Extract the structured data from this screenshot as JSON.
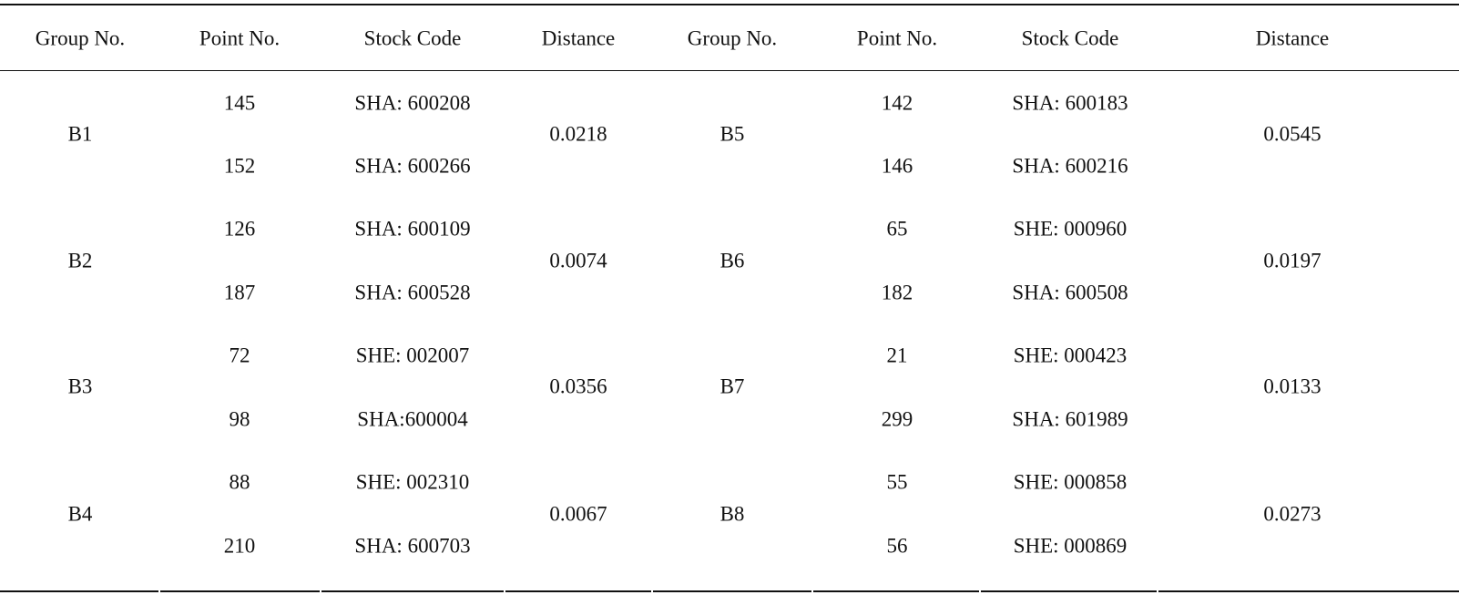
{
  "table": {
    "headers": [
      "Group No.",
      "Point No.",
      "Stock Code",
      "Distance",
      "Group No.",
      "Point No.",
      "Stock Code",
      "Distance"
    ],
    "left_groups": [
      {
        "group": "B1",
        "points": [
          "145",
          "152"
        ],
        "codes": [
          "SHA: 600208",
          "SHA: 600266"
        ],
        "distance": "0.0218"
      },
      {
        "group": "B2",
        "points": [
          "126",
          "187"
        ],
        "codes": [
          "SHA: 600109",
          "SHA: 600528"
        ],
        "distance": "0.0074"
      },
      {
        "group": "B3",
        "points": [
          "72",
          "98"
        ],
        "codes": [
          "SHE: 002007",
          "SHA:600004"
        ],
        "distance": "0.0356"
      },
      {
        "group": "B4",
        "points": [
          "88",
          "210"
        ],
        "codes": [
          "SHE: 002310",
          "SHA: 600703"
        ],
        "distance": "0.0067"
      }
    ],
    "right_groups": [
      {
        "group": "B5",
        "points": [
          "142",
          "146"
        ],
        "codes": [
          "SHA: 600183",
          "SHA: 600216"
        ],
        "distance": "0.0545"
      },
      {
        "group": "B6",
        "points": [
          "65",
          "182"
        ],
        "codes": [
          "SHE: 000960",
          "SHA: 600508"
        ],
        "distance": "0.0197"
      },
      {
        "group": "B7",
        "points": [
          "21",
          "299"
        ],
        "codes": [
          "SHE: 000423",
          "SHA: 601989"
        ],
        "distance": "0.0133"
      },
      {
        "group": "B8",
        "points": [
          "55",
          "56"
        ],
        "codes": [
          "SHE: 000858",
          "SHE: 000869"
        ],
        "distance": "0.0273"
      }
    ]
  }
}
